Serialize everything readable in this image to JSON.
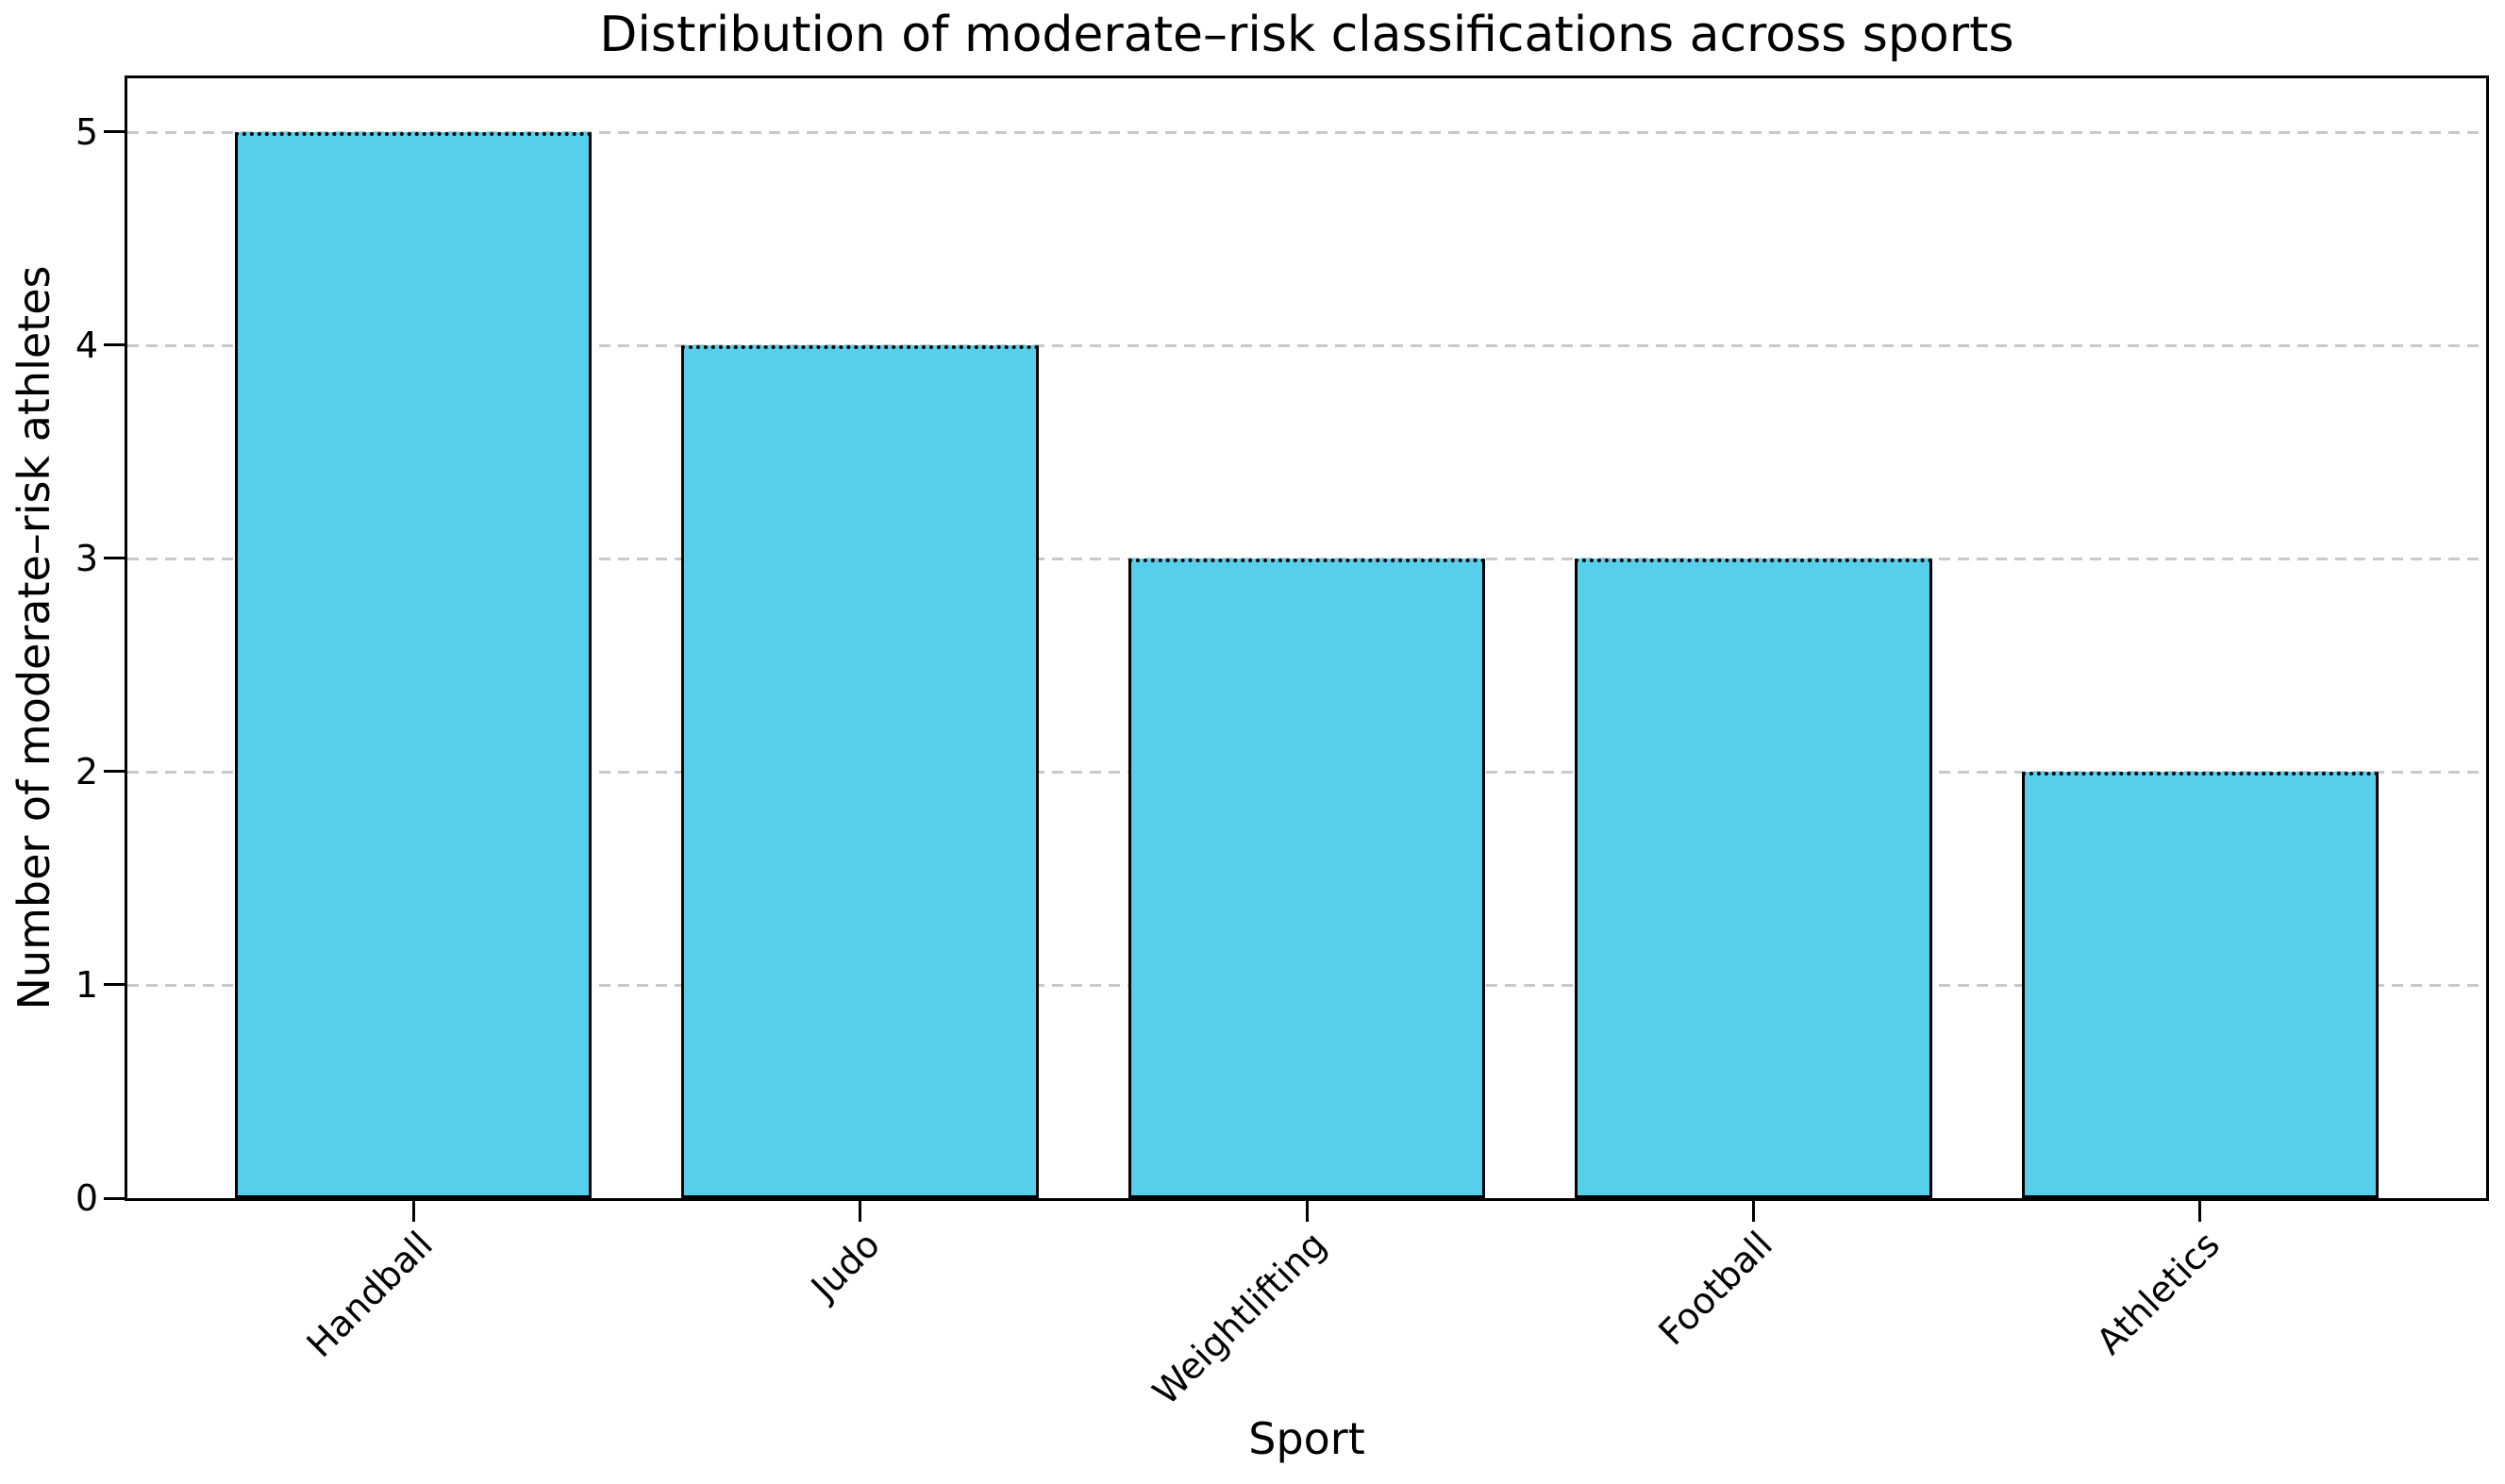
{
  "chart_data": {
    "type": "bar",
    "title": "Distribution of moderate–risk classifications across sports",
    "xlabel": "Sport",
    "ylabel": "Number of moderate–risk athletes",
    "categories": [
      "Handball",
      "Judo",
      "Weightlifting",
      "Football",
      "Athletics"
    ],
    "values": [
      5,
      4,
      3,
      3,
      2
    ],
    "yticks": [
      0,
      1,
      2,
      3,
      4,
      5
    ],
    "ylim": [
      0,
      5.25
    ],
    "xlim": [
      -0.64,
      4.64
    ],
    "bar_width": 0.8,
    "grid": "horizontal-dashed",
    "legend_position": "none",
    "colors": {
      "bar_fill": "#58CFEA",
      "bar_edge": "#000000",
      "gridline": "#c9c9c9",
      "background": "#ffffff",
      "text": "#000000"
    }
  }
}
